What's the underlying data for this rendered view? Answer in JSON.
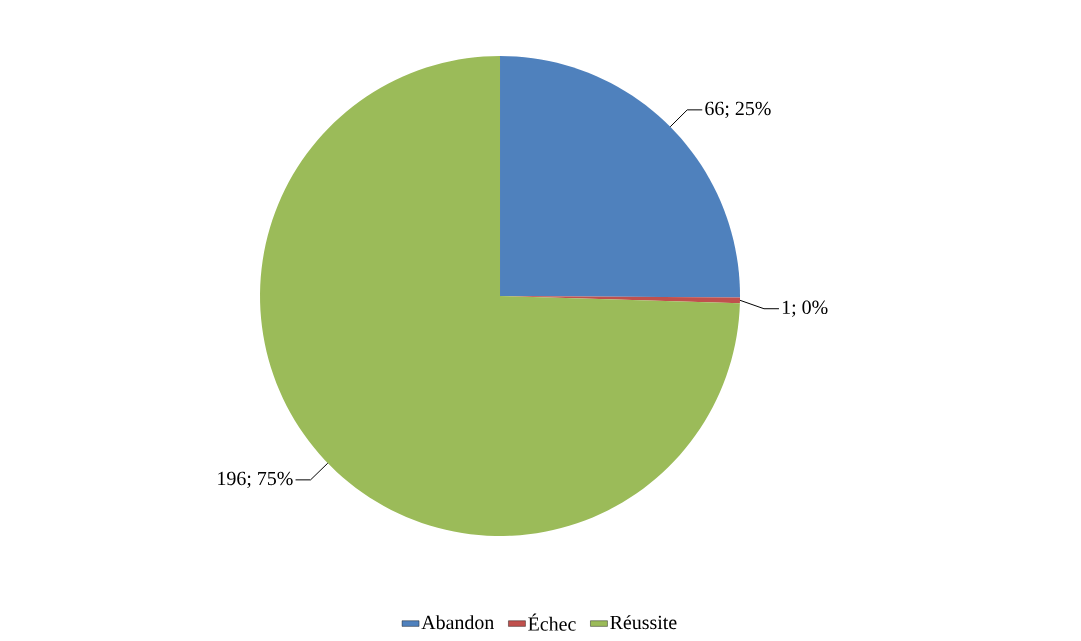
{
  "chart_data": {
    "type": "pie",
    "categories": [
      "Abandon",
      "Échec",
      "Réussite"
    ],
    "values": [
      66,
      1,
      196
    ],
    "colors": [
      "#4f81bd",
      "#c0504d",
      "#9bbb59"
    ],
    "value_labels": [
      "66; 25%",
      "1; 0%",
      "196; 75%"
    ],
    "legend": "bottom"
  }
}
